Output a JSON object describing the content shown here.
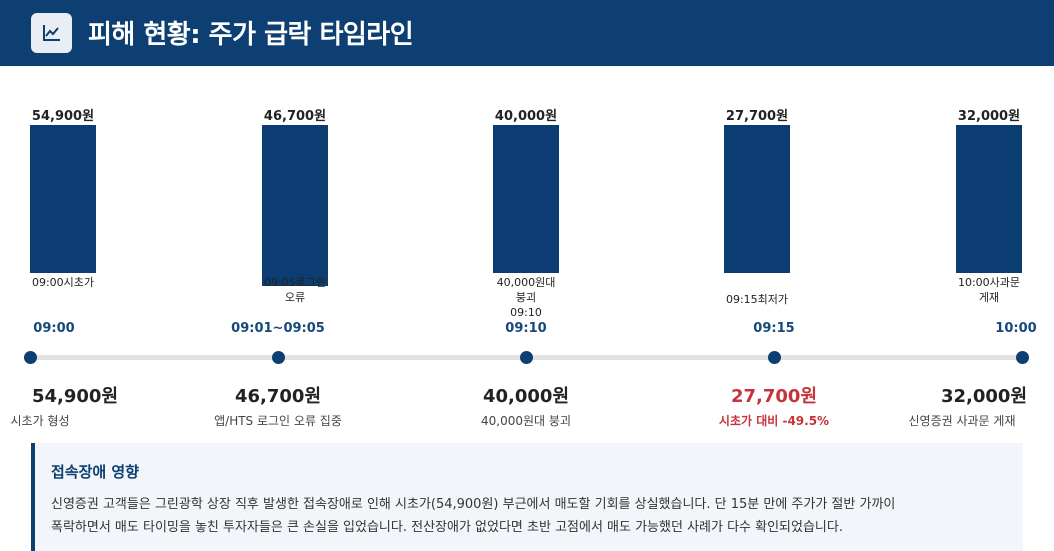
{
  "header": {
    "title": "피해 현황: 주가 급락 타임라인",
    "icon": "line-chart-icon"
  },
  "chart_data": {
    "type": "bar",
    "categories": [
      "09:00시초가",
      "09:05로그인 오류",
      "40,000원대 붕괴 09:10",
      "09:15최저가",
      "10:00사과문 게재"
    ],
    "values": [
      54900,
      46700,
      40000,
      27700,
      32000
    ],
    "value_labels": [
      "54,900원",
      "46,700원",
      "40,000원",
      "27,700원",
      "32,000원"
    ],
    "label_lines": [
      [
        "09:00시초가"
      ],
      [
        "09:05로그인",
        "오류"
      ],
      [
        "40,000원대",
        "붕괴",
        "09:10"
      ],
      [
        "09:15최저가"
      ],
      [
        "10:00사과문",
        "게재"
      ]
    ],
    "bar_color": "#0c3d72"
  },
  "timeline": [
    {
      "time": "09:00",
      "price": "54,900원",
      "desc": "시초가 형성",
      "highlight": false
    },
    {
      "time": "09:01~09:05",
      "price": "46,700원",
      "desc": "앱/HTS 로그인 오류 집중",
      "highlight": false
    },
    {
      "time": "09:10",
      "price": "40,000원",
      "desc": "40,000원대 붕괴",
      "highlight": false
    },
    {
      "time": "09:15",
      "price": "27,700원",
      "desc": "시초가 대비 -49.5%",
      "highlight": true
    },
    {
      "time": "10:00",
      "price": "32,000원",
      "desc": "신영증권 사과문 게재",
      "highlight": false
    }
  ],
  "info": {
    "title": "접속장애 영향",
    "line1": "신영증권 고객들은 그린광학 상장 직후 발생한 접속장애로 인해 시초가(54,900원) 부근에서 매도할 기회를 상실했습니다. 단 15분 만에 주가가 절반 가까이",
    "line2": "폭락하면서 매도 타이밍을 놓친 투자자들은 큰 손실을 입었습니다. 전산장애가 없었다면 초반 고점에서 매도 가능했던 사례가 다수 확인되었습니다."
  },
  "colors": {
    "primary": "#0d3f73",
    "alert": "#c8323a",
    "panel": "#f2f6fb"
  }
}
